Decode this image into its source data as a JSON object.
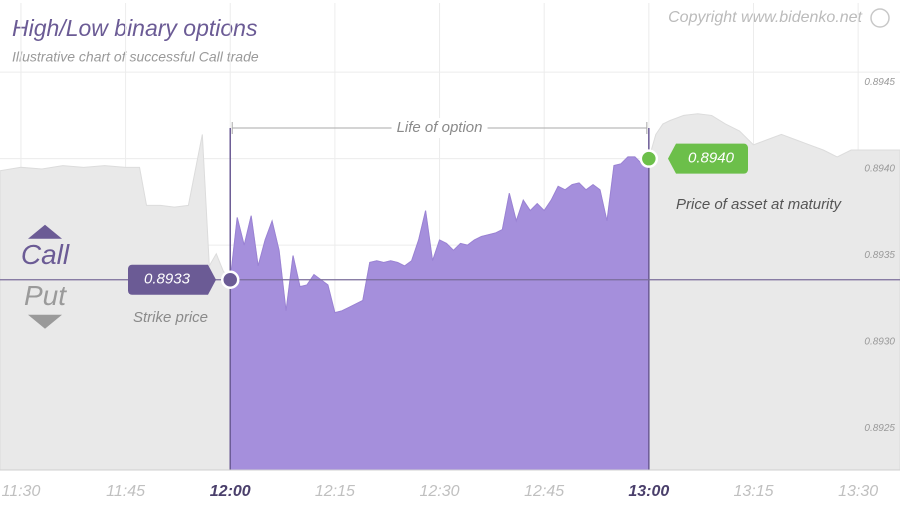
{
  "chart_data": {
    "type": "area",
    "title": "High/Low binary options",
    "subtitle": "Illustrative chart of successful Call trade",
    "copyright": "Copyright www.bidenko.net",
    "call_label": "Call",
    "put_label": "Put",
    "x": [
      "11:27",
      "11:30",
      "11:33",
      "11:36",
      "11:39",
      "11:42",
      "11:45",
      "11:47",
      "11:48",
      "11:50",
      "11:52",
      "11:54",
      "11:56",
      "11:57",
      "11:58",
      "11:59",
      "12:00",
      "12:01",
      "12:02",
      "12:03",
      "12:04",
      "12:05",
      "12:06",
      "12:07",
      "12:08",
      "12:09",
      "12:10",
      "12:11",
      "12:12",
      "12:13",
      "12:14",
      "12:15",
      "12:16",
      "12:17",
      "12:18",
      "12:19",
      "12:20",
      "12:21",
      "12:22",
      "12:23",
      "12:24",
      "12:25",
      "12:26",
      "12:27",
      "12:28",
      "12:29",
      "12:30",
      "12:31",
      "12:32",
      "12:33",
      "12:34",
      "12:35",
      "12:36",
      "12:37",
      "12:38",
      "12:39",
      "12:40",
      "12:41",
      "12:42",
      "12:43",
      "12:44",
      "12:45",
      "12:46",
      "12:47",
      "12:48",
      "12:49",
      "12:50",
      "12:51",
      "12:52",
      "12:53",
      "12:54",
      "12:55",
      "12:56",
      "12:57",
      "12:58",
      "12:59",
      "13:00",
      "13:01",
      "13:02",
      "13:03",
      "13:05",
      "13:07",
      "13:09",
      "13:11",
      "13:13",
      "13:15",
      "13:17",
      "13:19",
      "13:21",
      "13:23",
      "13:25",
      "13:27",
      "13:29",
      "13:31",
      "13:33",
      "13:36"
    ],
    "values": [
      0.89393,
      0.89395,
      0.89394,
      0.89396,
      0.89395,
      0.89396,
      0.89395,
      0.89395,
      0.89373,
      0.89373,
      0.89372,
      0.89373,
      0.89414,
      0.89338,
      0.89345,
      0.89335,
      0.8933,
      0.89366,
      0.8935,
      0.89367,
      0.89338,
      0.89353,
      0.89364,
      0.89347,
      0.89312,
      0.89344,
      0.89326,
      0.89327,
      0.89333,
      0.8933,
      0.89327,
      0.89311,
      0.89312,
      0.89314,
      0.89316,
      0.89318,
      0.8934,
      0.89341,
      0.8934,
      0.89341,
      0.8934,
      0.89338,
      0.89341,
      0.89353,
      0.8937,
      0.89341,
      0.89353,
      0.89351,
      0.89347,
      0.89351,
      0.8935,
      0.89353,
      0.89355,
      0.89356,
      0.89357,
      0.89359,
      0.8938,
      0.89364,
      0.89376,
      0.8937,
      0.89374,
      0.8937,
      0.89376,
      0.89384,
      0.89382,
      0.89385,
      0.89386,
      0.89382,
      0.89385,
      0.89382,
      0.89364,
      0.89396,
      0.89397,
      0.89401,
      0.89401,
      0.89397,
      0.894,
      0.89414,
      0.8942,
      0.89422,
      0.89425,
      0.89426,
      0.89425,
      0.8942,
      0.89416,
      0.89408,
      0.89411,
      0.89414,
      0.89411,
      0.89408,
      0.89405,
      0.89401,
      0.89405,
      0.89405,
      0.89405,
      0.89405
    ],
    "color": "#a58fdc",
    "background_color": "#e9e9e9",
    "xlim": [
      "11:27",
      "13:36"
    ],
    "xticks": [
      "11:30",
      "11:45",
      "12:00",
      "12:15",
      "12:30",
      "12:45",
      "13:00",
      "13:15",
      "13:30"
    ],
    "ylim": [
      0.8922,
      0.8949
    ],
    "yticks": [
      0.8945,
      {
        "value": 0.894,
        "label": "0.8940"
      },
      0.8935,
      {
        "value": 0.893,
        "label": "0.8930"
      },
      0.8925
    ],
    "grid": true,
    "period": {
      "label": "Life of option",
      "start": "12:00",
      "end": "13:00"
    },
    "strike": {
      "label": "Strike price",
      "value": 0.8933,
      "color": "#6b5b95"
    },
    "maturity": {
      "label": "Price of asset at maturity",
      "value": 0.894,
      "value_label": "0.8940",
      "color": "#6cbf4a"
    }
  }
}
